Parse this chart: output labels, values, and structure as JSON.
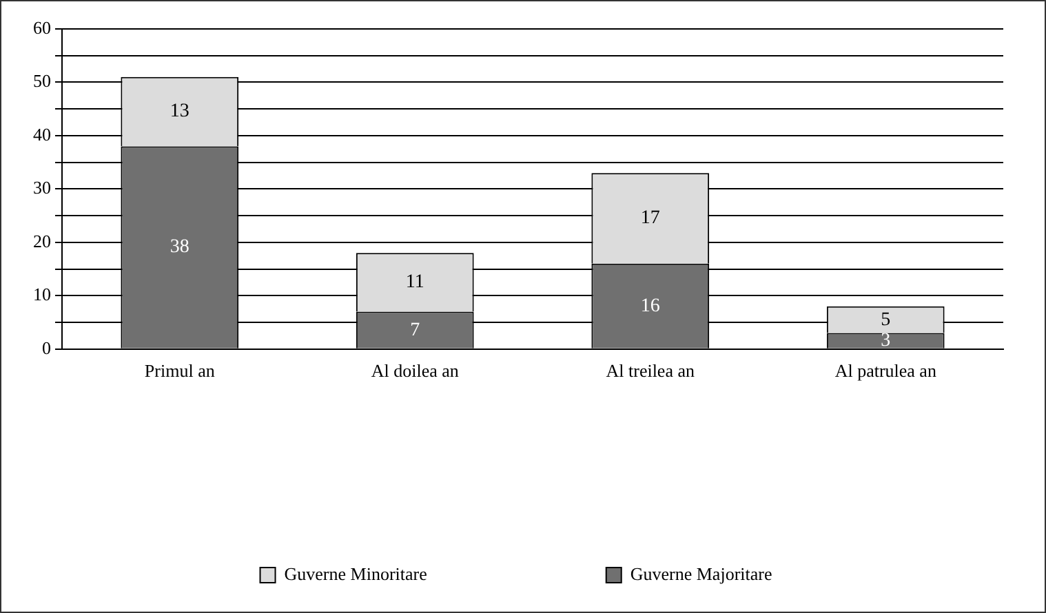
{
  "chart_data": {
    "type": "bar",
    "stacked": true,
    "categories": [
      "Primul an",
      "Al doilea an",
      "Al treilea an",
      "Al patrulea an"
    ],
    "series": [
      {
        "name": "Guverne Majoritare",
        "color": "#707070",
        "values": [
          38,
          7,
          16,
          3
        ]
      },
      {
        "name": "Guverne Minoritare",
        "color": "#dcdcdc",
        "values": [
          13,
          11,
          17,
          5
        ]
      }
    ],
    "ylim": [
      0,
      60
    ],
    "yticks": [
      0,
      {
        "value": 5,
        "label": null
      },
      10,
      {
        "value": 15,
        "label": null
      },
      20,
      {
        "value": 25,
        "label": null
      },
      30,
      {
        "value": 35,
        "label": null
      },
      40,
      {
        "value": 45,
        "label": null
      },
      50,
      {
        "value": 55,
        "label": null
      },
      60
    ],
    "grid": "y",
    "legend": "bottom",
    "data_labels": true
  }
}
